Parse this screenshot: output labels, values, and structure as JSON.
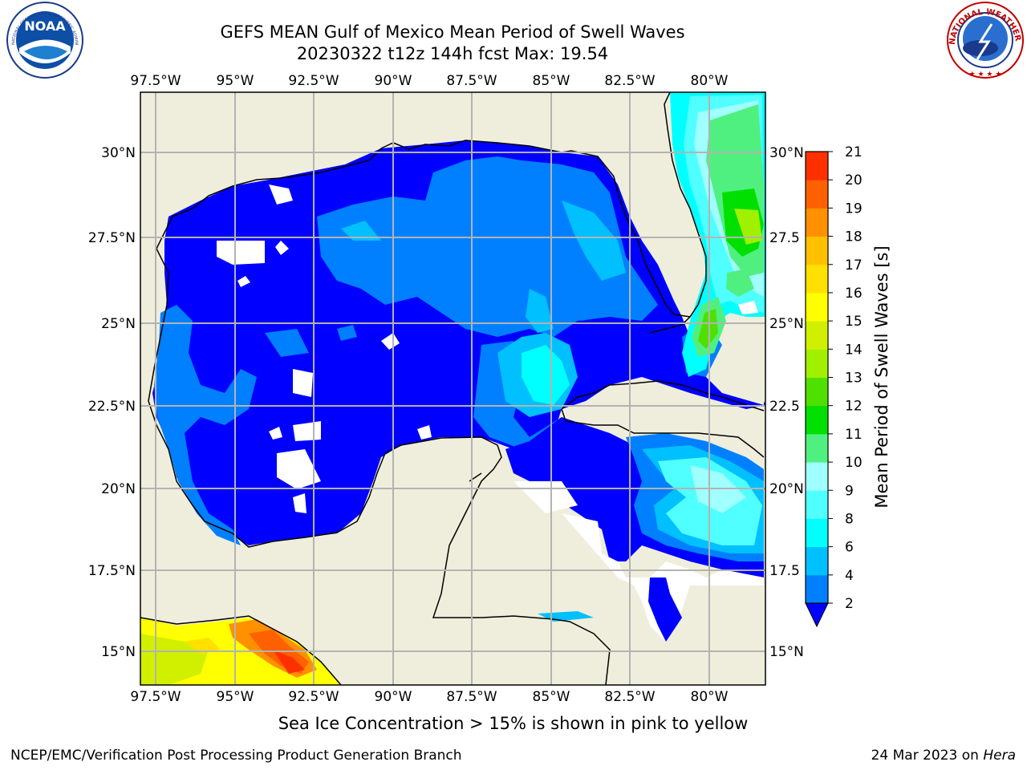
{
  "header": {
    "title": "GEFS MEAN Gulf of Mexico Mean Period of Swell Waves",
    "subtitle": "20230322 t12z 144h fcst   Max: 19.54"
  },
  "logos": {
    "left": {
      "name": "NOAA",
      "text": "NOAA",
      "ring_text": "NATIONAL OCEANIC AND ATMOSPHERIC ADMINISTRATION · U.S. DEPARTMENT OF COMMERCE"
    },
    "right": {
      "name": "National Weather Service",
      "ring_text": "NATIONAL WEATHER SERVICE"
    }
  },
  "map": {
    "lon_ticks_top": [
      "97.5°W",
      "95°W",
      "92.5°W",
      "90°W",
      "87.5°W",
      "85°W",
      "82.5°W",
      "80°W"
    ],
    "lon_ticks_bottom": [
      "97.5°W",
      "95°W",
      "92.5°W",
      "90°W",
      "87.5°W",
      "85°W",
      "82.5°W",
      "80°W"
    ],
    "lat_ticks_left": [
      "30°N",
      "27.5°N",
      "25°N",
      "22.5°N",
      "20°N",
      "17.5°N",
      "15°N"
    ],
    "lat_ticks_right": [
      "30°N",
      "27.5",
      "25°N",
      "22.5",
      "20°N",
      "17.5",
      "15°N"
    ],
    "extent": {
      "lon_min": -98.1,
      "lon_max": -78.3,
      "lat_min": 14.0,
      "lat_max": 31.8
    },
    "land_color": "#efeedc",
    "grid_color": "#b3b3b3"
  },
  "colorbar": {
    "label": "Mean Period of Swell Waves [s]",
    "ticks": [
      "21",
      "20",
      "19",
      "18",
      "17",
      "16",
      "15",
      "14",
      "13",
      "12",
      "11",
      "10",
      "9",
      "8",
      "6",
      "4",
      "2"
    ],
    "colors": [
      "#0000ff",
      "#0080ff",
      "#00c0ff",
      "#00ffff",
      "#50ffff",
      "#a0ffff",
      "#50f080",
      "#00e000",
      "#50e000",
      "#a0f000",
      "#d0f000",
      "#ffff00",
      "#ffe000",
      "#ffc000",
      "#ff9000",
      "#ff6000",
      "#ff3000",
      "#ff0000"
    ]
  },
  "footer": {
    "note": "Sea Ice Concentration > 15% is shown in pink to yellow",
    "left": "NCEP/EMC/Verification Post Processing Product Generation Branch",
    "date": "24 Mar 2023 on ",
    "host": "Hera"
  }
}
